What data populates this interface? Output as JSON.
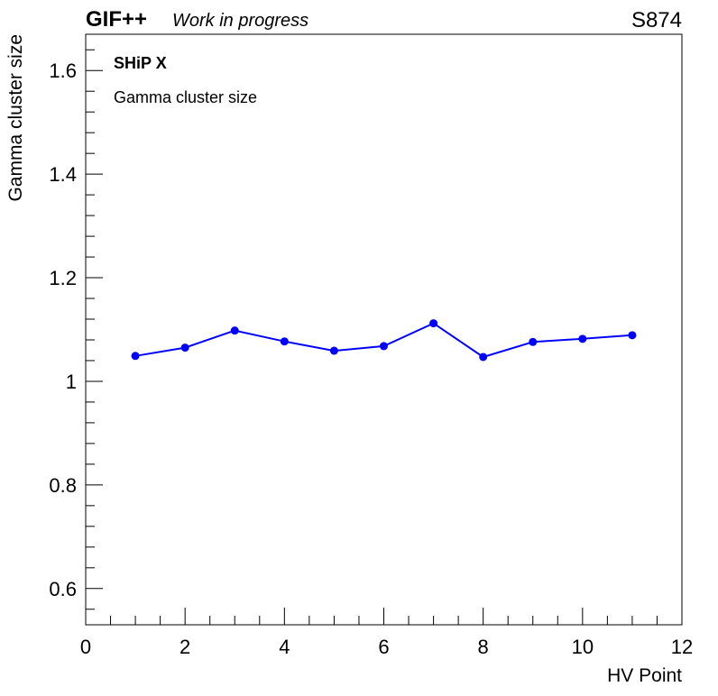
{
  "header": {
    "brand": "GIF++",
    "status": "Work in progress",
    "run_id": "S874"
  },
  "legend": {
    "title": "SHiP X",
    "subtitle": "Gamma cluster size"
  },
  "colors": {
    "series": "#0000ff",
    "axis": "#000000",
    "background": "#ffffff"
  },
  "chart_data": {
    "type": "line",
    "xlabel": "HV Point",
    "ylabel": "Gamma cluster size",
    "xlim": [
      0,
      12
    ],
    "ylim": [
      0.53,
      1.67
    ],
    "x_ticks": [
      "0",
      "2",
      "4",
      "6",
      "8",
      "10",
      "12"
    ],
    "y_ticks": [
      "0.6",
      "0.8",
      "1",
      "1.2",
      "1.4",
      "1.6"
    ],
    "grid": false,
    "series": [
      {
        "x": [
          1,
          2,
          3,
          4,
          5,
          6,
          7,
          8,
          9,
          10,
          11
        ],
        "y": [
          1.049,
          1.065,
          1.098,
          1.077,
          1.059,
          1.068,
          1.112,
          1.047,
          1.076,
          1.082,
          1.089
        ]
      }
    ]
  }
}
